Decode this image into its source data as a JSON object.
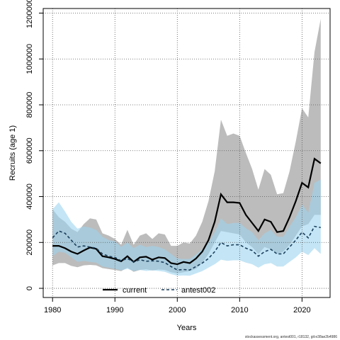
{
  "chart_data": {
    "type": "area",
    "xlabel": "Years",
    "ylabel": "Recruits (age 1)",
    "xlim": [
      1978.5,
      2024.5
    ],
    "ylim": [
      -40000,
      1220000
    ],
    "x_ticks": [
      1980,
      1990,
      2000,
      2010,
      2020
    ],
    "y_ticks": [
      0,
      200000,
      400000,
      600000,
      800000,
      1000000,
      1200000
    ],
    "grid": true,
    "legend_position": "bottom",
    "footer_text": "stockassessment.org, antest001, r18132, git:e38ae2b4986",
    "colors": {
      "current_band": "#b0b0b0",
      "current_line": "#000000",
      "antest_band": "#9dd3ee",
      "antest_line": "#1a3f5c"
    },
    "years": [
      1980,
      1981,
      1982,
      1983,
      1984,
      1985,
      1986,
      1987,
      1988,
      1989,
      1990,
      1991,
      1992,
      1993,
      1994,
      1995,
      1996,
      1997,
      1998,
      1999,
      2000,
      2001,
      2002,
      2003,
      2004,
      2005,
      2006,
      2007,
      2008,
      2009,
      2010,
      2011,
      2012,
      2013,
      2014,
      2015,
      2016,
      2017,
      2018,
      2019,
      2020,
      2021,
      2022,
      2023
    ],
    "series": [
      {
        "name": "current",
        "line_style": "solid",
        "values": [
          185000,
          185000,
          175000,
          160000,
          150000,
          165000,
          178000,
          172000,
          140000,
          135000,
          128000,
          118000,
          140000,
          115000,
          135000,
          138000,
          125000,
          135000,
          132000,
          110000,
          105000,
          115000,
          110000,
          130000,
          160000,
          210000,
          290000,
          410000,
          375000,
          375000,
          372000,
          320000,
          285000,
          250000,
          300000,
          290000,
          245000,
          250000,
          310000,
          380000,
          460000,
          440000,
          565000,
          545000
        ],
        "lower": [
          100000,
          110000,
          110000,
          98000,
          92000,
          100000,
          102000,
          100000,
          88000,
          84000,
          80000,
          75000,
          90000,
          72000,
          80000,
          83000,
          78000,
          82000,
          80000,
          70000,
          65000,
          70000,
          75000,
          85000,
          110000,
          150000,
          200000,
          250000,
          245000,
          240000,
          235000,
          200000,
          180000,
          150000,
          180000,
          170000,
          150000,
          160000,
          190000,
          230000,
          270000,
          280000,
          320000,
          320000
        ],
        "upper": [
          345000,
          310000,
          290000,
          260000,
          245000,
          280000,
          305000,
          300000,
          240000,
          230000,
          215000,
          190000,
          255000,
          190000,
          230000,
          240000,
          215000,
          240000,
          235000,
          185000,
          185000,
          200000,
          195000,
          230000,
          290000,
          380000,
          510000,
          735000,
          665000,
          675000,
          665000,
          590000,
          520000,
          430000,
          520000,
          495000,
          410000,
          415000,
          510000,
          640000,
          785000,
          745000,
          1030000,
          1175000
        ]
      },
      {
        "name": "antest002",
        "line_style": "dashed",
        "values": [
          220000,
          250000,
          240000,
          210000,
          180000,
          185000,
          180000,
          175000,
          150000,
          140000,
          135000,
          120000,
          130000,
          115000,
          125000,
          118000,
          120000,
          118000,
          112000,
          95000,
          80000,
          82000,
          80000,
          95000,
          110000,
          130000,
          160000,
          200000,
          185000,
          190000,
          190000,
          175000,
          165000,
          140000,
          160000,
          170000,
          150000,
          150000,
          180000,
          210000,
          245000,
          220000,
          270000,
          265000
        ],
        "lower": [
          140000,
          160000,
          155000,
          135000,
          115000,
          120000,
          115000,
          112000,
          95000,
          90000,
          85000,
          78000,
          85000,
          75000,
          80000,
          76000,
          78000,
          76000,
          72000,
          62000,
          55000,
          56000,
          55000,
          65000,
          75000,
          90000,
          105000,
          125000,
          120000,
          122000,
          122000,
          112000,
          105000,
          90000,
          105000,
          110000,
          95000,
          95000,
          115000,
          135000,
          160000,
          145000,
          175000,
          150000
        ],
        "upper": [
          345000,
          375000,
          335000,
          290000,
          260000,
          270000,
          265000,
          255000,
          225000,
          210000,
          205000,
          180000,
          200000,
          175000,
          190000,
          180000,
          185000,
          180000,
          170000,
          150000,
          130000,
          128000,
          128000,
          148000,
          170000,
          200000,
          245000,
          305000,
          280000,
          285000,
          285000,
          262000,
          245000,
          210000,
          240000,
          255000,
          225000,
          225000,
          270000,
          310000,
          365000,
          330000,
          460000,
          475000
        ]
      }
    ]
  }
}
